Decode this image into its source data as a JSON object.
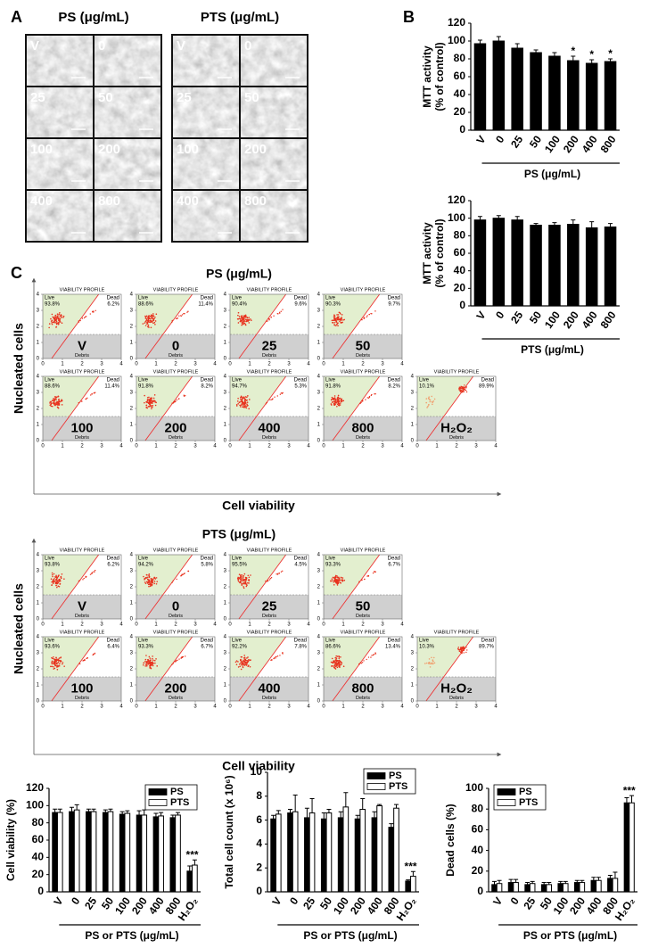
{
  "figure_labels": {
    "a": "A",
    "b": "B",
    "c": "C"
  },
  "panel_a": {
    "groups": [
      {
        "title": "PS (μg/mL)",
        "tiles": [
          "V",
          "0",
          "25",
          "50",
          "100",
          "200",
          "400",
          "800"
        ]
      },
      {
        "title": "PTS (μg/mL)",
        "tiles": [
          "V",
          "0",
          "25",
          "50",
          "100",
          "200",
          "400",
          "800"
        ]
      }
    ]
  },
  "panel_c": {
    "plot_title": "VIABILITY PROFILE",
    "live_label": "Live",
    "dead_label": "Dead",
    "debris_label": "Debris",
    "axis_ticks": [
      0,
      1,
      2,
      3,
      4
    ],
    "y_label": "Nucleated cells",
    "x_label": "Cell viability",
    "groups": [
      {
        "title": "PS (μg/mL)",
        "plots": [
          {
            "treatment": "V",
            "live": "93.8%",
            "dead": "6.2%"
          },
          {
            "treatment": "0",
            "live": "88.6%",
            "dead": "11.4%"
          },
          {
            "treatment": "25",
            "live": "90.4%",
            "dead": "9.6%"
          },
          {
            "treatment": "50",
            "live": "90.3%",
            "dead": "9.7%"
          },
          {
            "treatment": "100",
            "live": "88.6%",
            "dead": "11.4%"
          },
          {
            "treatment": "200",
            "live": "91.8%",
            "dead": "8.2%"
          },
          {
            "treatment": "400",
            "live": "94.7%",
            "dead": "5.3%"
          },
          {
            "treatment": "800",
            "live": "91.8%",
            "dead": "8.2%"
          },
          {
            "treatment": "H₂O₂",
            "live": "10.1%",
            "dead": "89.9%"
          }
        ]
      },
      {
        "title": "PTS (μg/mL)",
        "plots": [
          {
            "treatment": "V",
            "live": "93.8%",
            "dead": "6.2%"
          },
          {
            "treatment": "0",
            "live": "94.2%",
            "dead": "5.8%"
          },
          {
            "treatment": "25",
            "live": "95.5%",
            "dead": "4.5%"
          },
          {
            "treatment": "50",
            "live": "93.3%",
            "dead": "6.7%"
          },
          {
            "treatment": "100",
            "live": "93.6%",
            "dead": "6.4%"
          },
          {
            "treatment": "200",
            "live": "93.3%",
            "dead": "6.7%"
          },
          {
            "treatment": "400",
            "live": "92.2%",
            "dead": "7.8%"
          },
          {
            "treatment": "800",
            "live": "86.6%",
            "dead": "13.4%"
          },
          {
            "treatment": "H₂O₂",
            "live": "10.3%",
            "dead": "89.7%"
          }
        ]
      }
    ]
  },
  "chart_data": [
    {
      "type": "bar",
      "y_label": [
        "MTT activity",
        "(% of control)"
      ],
      "x_label": "PS (μg/mL)",
      "categories": [
        "V",
        "0",
        "25",
        "50",
        "100",
        "200",
        "400",
        "800"
      ],
      "values": [
        97,
        100,
        92,
        87,
        83,
        78,
        75,
        77
      ],
      "errors": [
        4,
        5,
        5,
        3,
        4,
        5,
        4,
        3
      ],
      "significance": [
        null,
        null,
        null,
        null,
        null,
        "*",
        "*",
        "*"
      ],
      "color": "#000000",
      "ylim": [
        0,
        120
      ],
      "yticks": [
        0,
        20,
        40,
        60,
        80,
        100,
        120
      ]
    },
    {
      "type": "bar",
      "y_label": [
        "MTT activity",
        "(% of control)"
      ],
      "x_label": "PTS (μg/mL)",
      "categories": [
        "V",
        "0",
        "25",
        "50",
        "100",
        "200",
        "400",
        "800"
      ],
      "values": [
        98,
        100,
        98,
        92,
        92,
        93,
        89,
        90
      ],
      "errors": [
        4,
        3,
        4,
        2,
        3,
        5,
        7,
        4
      ],
      "color": "#000000",
      "ylim": [
        0,
        120
      ],
      "yticks": [
        0,
        20,
        40,
        60,
        80,
        100,
        120
      ]
    },
    {
      "type": "bar",
      "y_label": "Cell viability (%)",
      "x_label": "PS or PTS (μg/mL)",
      "categories": [
        "V",
        "0",
        "25",
        "50",
        "100",
        "200",
        "400",
        "800",
        "H₂O₂"
      ],
      "series": [
        {
          "name": "PS",
          "color": "#000000",
          "values": [
            92,
            93,
            93,
            92,
            90,
            89,
            87,
            86,
            24
          ],
          "errors": [
            4,
            5,
            3,
            3,
            3,
            5,
            4,
            3,
            6
          ]
        },
        {
          "name": "PTS",
          "color": "#ffffff",
          "values": [
            92,
            95,
            93,
            93,
            91,
            89,
            88,
            89,
            31
          ],
          "errors": [
            4,
            6,
            3,
            3,
            3,
            6,
            4,
            3,
            6
          ]
        }
      ],
      "significance": [
        null,
        null,
        null,
        null,
        null,
        null,
        null,
        null,
        "***"
      ],
      "legend": "upper right",
      "ylim": [
        0,
        120
      ],
      "yticks": [
        0,
        20,
        40,
        60,
        80,
        100,
        120
      ]
    },
    {
      "type": "bar",
      "y_label": "Total cell count (x 10⁶)",
      "x_label": "PS or PTS (μg/mL)",
      "categories": [
        "V",
        "0",
        "25",
        "50",
        "100",
        "200",
        "400",
        "800",
        "H₂O₂"
      ],
      "series": [
        {
          "name": "PS",
          "color": "#000000",
          "values": [
            6.1,
            6.6,
            6.2,
            6.1,
            6.2,
            6.1,
            6.2,
            5.4,
            0.9
          ],
          "errors": [
            0.3,
            0.3,
            0.8,
            0.5,
            0.5,
            0.3,
            0.5,
            0.3,
            0.1
          ]
        },
        {
          "name": "PTS",
          "color": "#ffffff",
          "values": [
            6.5,
            6.7,
            6.6,
            6.6,
            7.1,
            6.9,
            7.2,
            7.0,
            1.3
          ],
          "errors": [
            0.3,
            1.4,
            1.2,
            0.3,
            1.2,
            0.9,
            0.1,
            0.3,
            0.4
          ]
        }
      ],
      "significance": [
        null,
        null,
        null,
        null,
        null,
        null,
        null,
        null,
        "***"
      ],
      "legend": "upper right",
      "ylim": [
        0,
        10
      ],
      "yticks": [
        0,
        2,
        4,
        6,
        8,
        10
      ]
    },
    {
      "type": "bar",
      "y_label": "Dead cells (%)",
      "x_label": "PS or PTS (μg/mL)",
      "categories": [
        "V",
        "0",
        "25",
        "50",
        "100",
        "200",
        "400",
        "800",
        "H₂O₂"
      ],
      "series": [
        {
          "name": "PS",
          "color": "#000000",
          "values": [
            7,
            9,
            7,
            7,
            8,
            9,
            11,
            13,
            86
          ],
          "errors": [
            3,
            3,
            2,
            2,
            2,
            2,
            3,
            3,
            5
          ]
        },
        {
          "name": "PTS",
          "color": "#ffffff",
          "values": [
            8,
            9,
            8,
            7,
            8,
            9,
            11,
            13,
            86
          ],
          "errors": [
            3,
            3,
            2,
            2,
            2,
            2,
            3,
            6,
            7
          ]
        }
      ],
      "significance": [
        null,
        null,
        null,
        null,
        null,
        null,
        null,
        null,
        "***"
      ],
      "legend": "upper left",
      "ylim": [
        0,
        100
      ],
      "yticks": [
        0,
        20,
        40,
        60,
        80,
        100
      ]
    }
  ]
}
